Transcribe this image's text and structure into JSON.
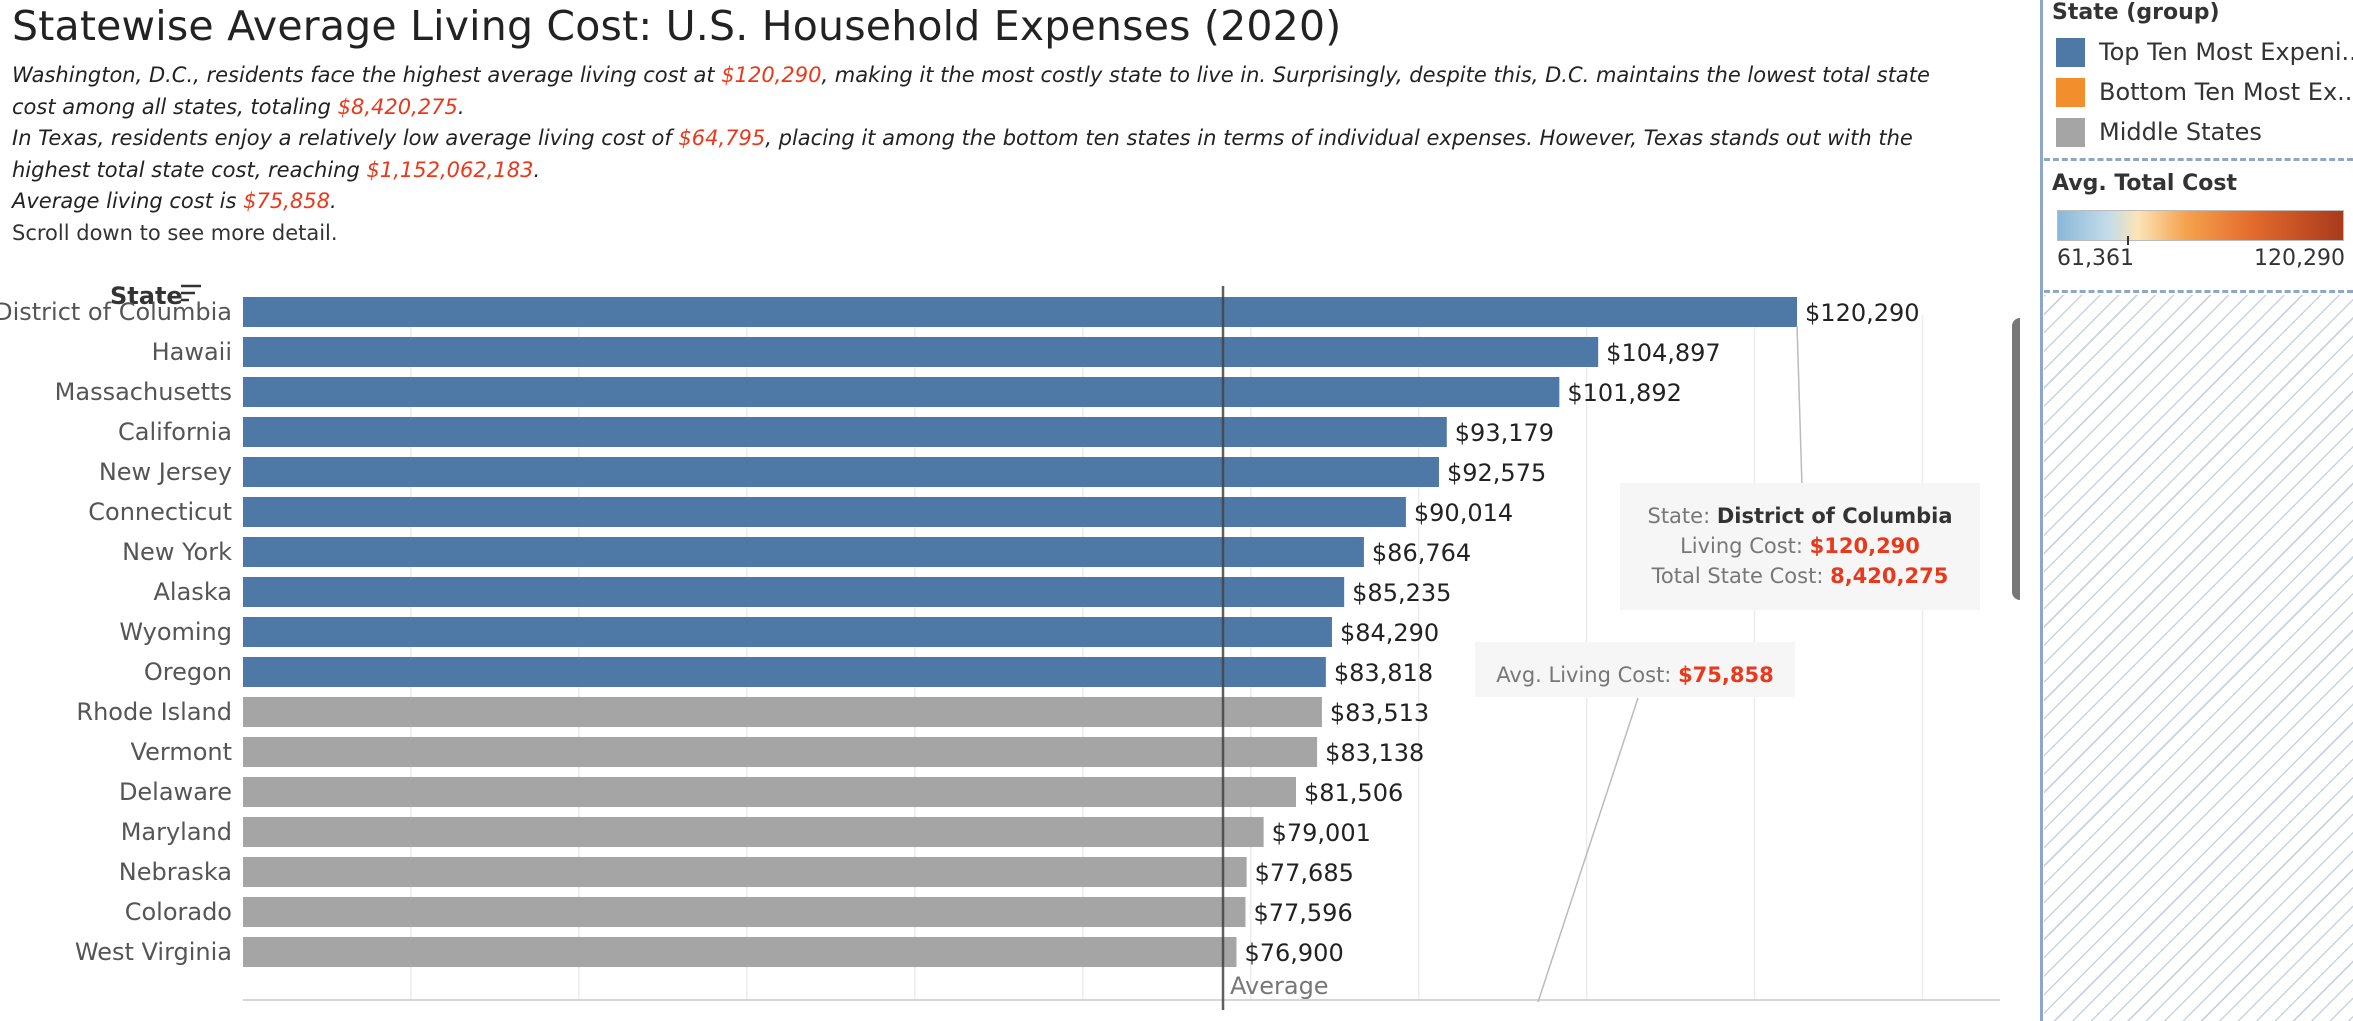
{
  "header": {
    "title": "Statewise Average Living Cost: U.S. Household Expenses (2020)",
    "p1_a": "Washington, D.C., residents face the highest average living cost at ",
    "p1_v1": "$120,290",
    "p1_b": ", making it the most costly state to live in. Surprisingly, despite this, D.C. maintains the lowest total state cost among all states, totaling ",
    "p1_v2": "$8,420,275",
    "p1_c": ".",
    "p2_a": "In Texas, residents enjoy a relatively low average living cost of ",
    "p2_v1": "$64,795",
    "p2_b": ", placing it among the bottom ten states in terms of individual expenses. However, Texas stands out with the highest total state cost, reaching ",
    "p2_v2": "$1,152,062,183",
    "p2_c": ".",
    "p3_a": "Average living cost is ",
    "p3_v": "$75,858",
    "p3_c": ".",
    "p4": "Scroll down to see more detail."
  },
  "chart_data": {
    "type": "bar",
    "orientation": "horizontal",
    "column_header": "State",
    "categories": [
      "District of Columbia",
      "Hawaii",
      "Massachusetts",
      "California",
      "New Jersey",
      "Connecticut",
      "New York",
      "Alaska",
      "Wyoming",
      "Oregon",
      "Rhode Island",
      "Vermont",
      "Delaware",
      "Maryland",
      "Nebraska",
      "Colorado",
      "West Virginia"
    ],
    "values": [
      120290,
      104897,
      101892,
      93179,
      92575,
      90014,
      86764,
      85235,
      84290,
      83818,
      83513,
      83138,
      81506,
      79001,
      77685,
      77596,
      76900
    ],
    "value_labels": [
      "$120,290",
      "$104,897",
      "$101,892",
      "$93,179",
      "$92,575",
      "$90,014",
      "$86,764",
      "$85,235",
      "$84,290",
      "$83,818",
      "$83,513",
      "$83,138",
      "$81,506",
      "$79,001",
      "$77,685",
      "$77,596",
      "$76,900"
    ],
    "groups": [
      "Top Ten Most Expensive",
      "Top Ten Most Expensive",
      "Top Ten Most Expensive",
      "Top Ten Most Expensive",
      "Top Ten Most Expensive",
      "Top Ten Most Expensive",
      "Top Ten Most Expensive",
      "Top Ten Most Expensive",
      "Top Ten Most Expensive",
      "Top Ten Most Expensive",
      "Middle States",
      "Middle States",
      "Middle States",
      "Middle States",
      "Middle States",
      "Middle States",
      "Middle States"
    ],
    "xlim": [
      0,
      136000
    ],
    "grid": true,
    "reference_line": {
      "value": 75858,
      "label": "Average"
    },
    "annotations": [
      {
        "target": "District of Columbia",
        "rows": [
          {
            "key": "State: ",
            "value": "District of Columbia",
            "style": "dark"
          },
          {
            "key": "Living Cost: ",
            "value": "$120,290",
            "style": "red"
          },
          {
            "key": "Total State Cost: ",
            "value": "8,420,275",
            "style": "red"
          }
        ]
      },
      {
        "target": "Average",
        "rows": [
          {
            "key": "Avg. Living Cost: ",
            "value": "$75,858",
            "style": "red"
          }
        ]
      }
    ],
    "colors": {
      "top": "#4e79a7",
      "middle": "#a5a5a5",
      "grid": "#ececec",
      "ref": "#444444",
      "red": "#e8391c"
    }
  },
  "legend": {
    "title": "State (group)",
    "items": [
      {
        "label": "Top Ten Most Expeni..",
        "color": "#4e79a7"
      },
      {
        "label": "Bottom Ten Most Ex..",
        "color": "#f28e2b"
      },
      {
        "label": "Middle States",
        "color": "#a5a5a5"
      }
    ],
    "gradient_title": "Avg. Total Cost",
    "gradient_min": "61,361",
    "gradient_max": "120,290"
  }
}
